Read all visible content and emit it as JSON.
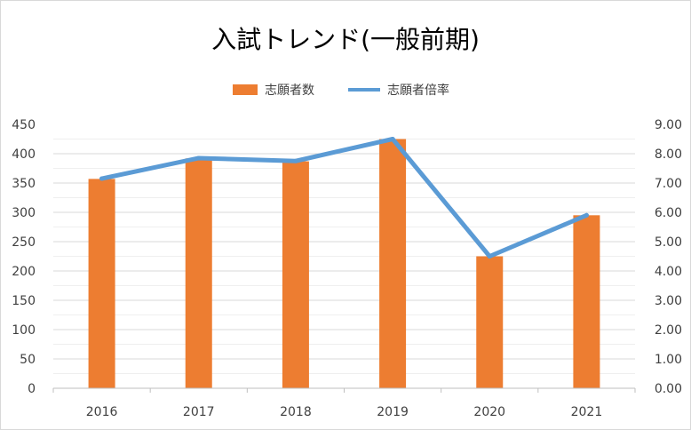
{
  "chart_data": {
    "type": "bar",
    "title": "入試トレンド(一般前期)",
    "categories": [
      "2016",
      "2017",
      "2018",
      "2019",
      "2020",
      "2021"
    ],
    "series": [
      {
        "name": "志願者数",
        "type": "bar",
        "axis": "left",
        "color": "#ED7D31",
        "values": [
          357,
          392,
          387,
          425,
          225,
          295
        ]
      },
      {
        "name": "志願者倍率",
        "type": "line",
        "axis": "right",
        "color": "#5B9BD5",
        "values": [
          7.15,
          7.85,
          7.75,
          8.5,
          4.5,
          5.9
        ]
      }
    ],
    "ylim": [
      0,
      450
    ],
    "y_ticks": [
      "0",
      "50",
      "100",
      "150",
      "200",
      "250",
      "300",
      "350",
      "400",
      "450"
    ],
    "y2lim": [
      0,
      9
    ],
    "y2_ticks": [
      "0.00",
      "1.00",
      "2.00",
      "3.00",
      "4.00",
      "5.00",
      "6.00",
      "7.00",
      "8.00",
      "9.00"
    ],
    "grid": true,
    "legend_position": "top"
  }
}
